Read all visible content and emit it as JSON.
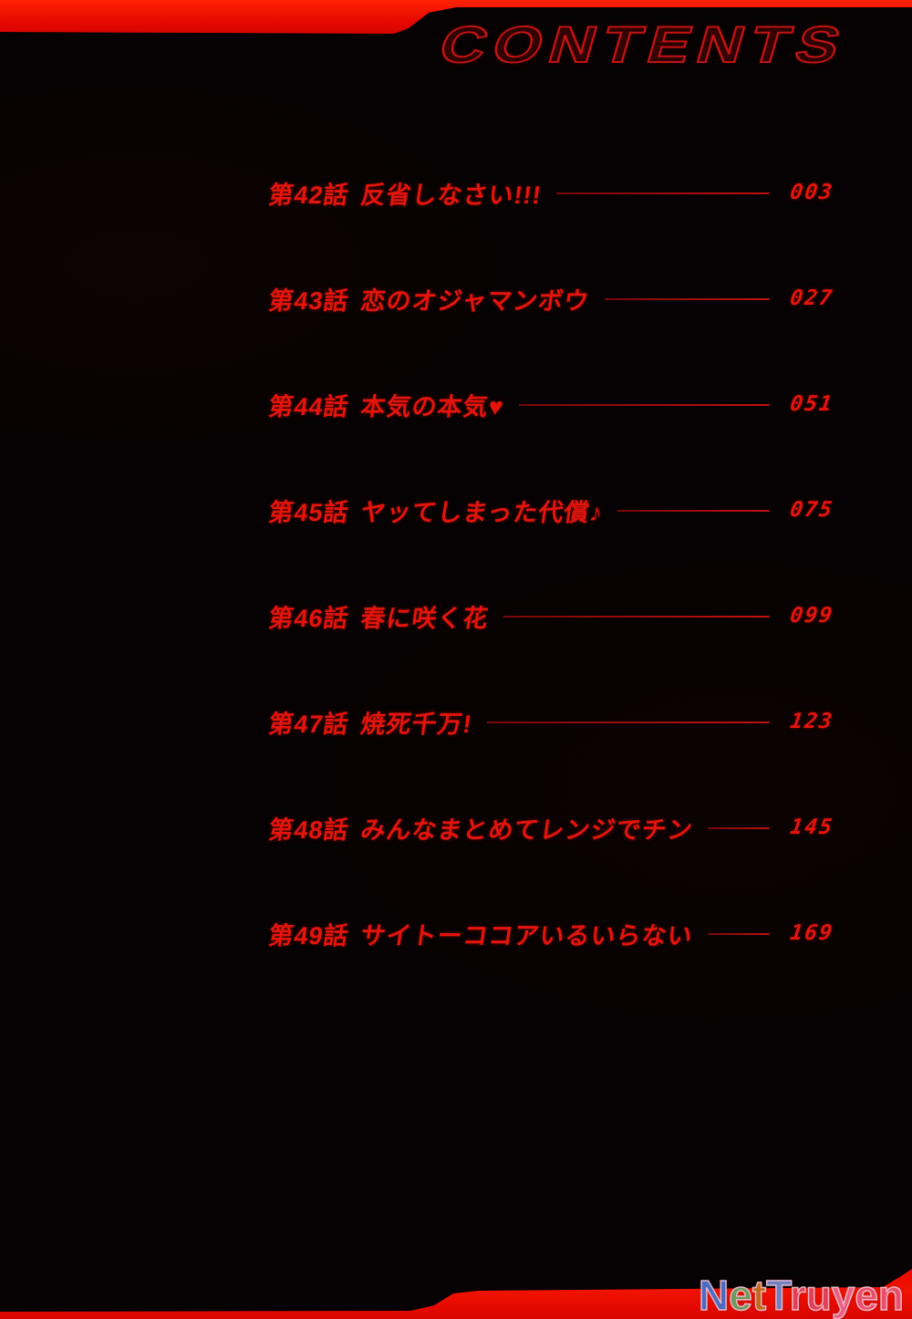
{
  "page_title": "CONTENTS",
  "colors": {
    "band_red": "#e60c00",
    "text_red": "#e4140d",
    "leader_red": "#c21010",
    "title_outline_red": "#c31313"
  },
  "toc": {
    "entries": [
      {
        "chapter": "第42話",
        "title": "反省しなさい!!!",
        "page": "003"
      },
      {
        "chapter": "第43話",
        "title": "恋のオジャマンボウ",
        "page": "027"
      },
      {
        "chapter": "第44話",
        "title": "本気の本気♥",
        "page": "051"
      },
      {
        "chapter": "第45話",
        "title": "ヤッてしまった代償♪",
        "page": "075"
      },
      {
        "chapter": "第46話",
        "title": "春に咲く花",
        "page": "099"
      },
      {
        "chapter": "第47話",
        "title": "焼死千万!",
        "page": "123"
      },
      {
        "chapter": "第48話",
        "title": "みんなまとめてレンジでチン",
        "page": "145"
      },
      {
        "chapter": "第49話",
        "title": "サイトーココアいるいらない",
        "page": "169"
      }
    ]
  },
  "watermark": {
    "text": "NetTruyen",
    "letters": [
      {
        "char": "N",
        "color": "#4a6cc0"
      },
      {
        "char": "e",
        "color": "#6f9a5e"
      },
      {
        "char": "t",
        "color": "#c06a20"
      },
      {
        "char": "T",
        "color": "#7080c0"
      },
      {
        "char": "r",
        "color": "#e04055"
      },
      {
        "char": "u",
        "color": "#e04055"
      },
      {
        "char": "y",
        "color": "#ea5f80"
      },
      {
        "char": "e",
        "color": "#e8506a"
      },
      {
        "char": "n",
        "color": "#e8506a"
      }
    ]
  }
}
